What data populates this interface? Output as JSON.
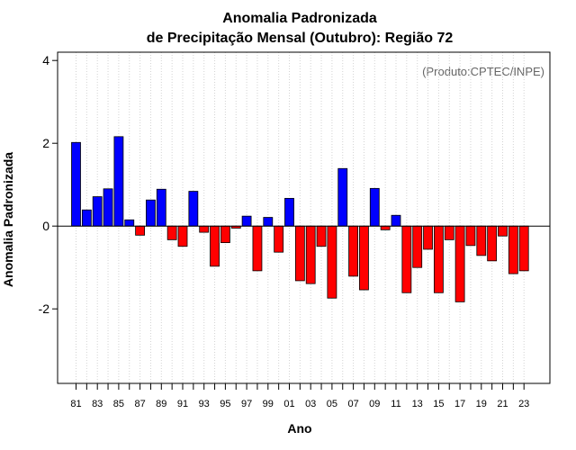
{
  "chart_data": {
    "type": "bar",
    "title": "Anomalia Padronizada",
    "subtitle": "de Precipitação Mensal (Outubro): Região 72",
    "xlabel": "Ano",
    "ylabel": "Anomalia Padronizada",
    "annotation": "(Produto:CPTEC/INPE)",
    "ylim": [
      -3.8,
      4.2
    ],
    "yticks": [
      -2,
      0,
      2,
      4
    ],
    "ytick_labels": [
      "-2",
      "0",
      "2",
      "4"
    ],
    "grid": "vertical dotted",
    "categories": [
      "81",
      "82",
      "83",
      "84",
      "85",
      "86",
      "87",
      "88",
      "89",
      "90",
      "91",
      "92",
      "93",
      "94",
      "95",
      "96",
      "97",
      "98",
      "99",
      "00",
      "01",
      "02",
      "03",
      "04",
      "05",
      "06",
      "07",
      "08",
      "09",
      "10",
      "11",
      "12",
      "13",
      "14",
      "15",
      "16",
      "17",
      "18",
      "19",
      "20",
      "21",
      "22",
      "23"
    ],
    "xtick_labels": [
      "81",
      "83",
      "85",
      "87",
      "89",
      "91",
      "93",
      "95",
      "97",
      "99",
      "01",
      "03",
      "05",
      "07",
      "09",
      "11",
      "13",
      "15",
      "17",
      "19",
      "21",
      "23"
    ],
    "values": [
      2.02,
      0.39,
      0.71,
      0.9,
      2.16,
      0.15,
      -0.22,
      0.63,
      0.89,
      -0.33,
      -0.49,
      0.84,
      -0.15,
      -0.97,
      -0.4,
      -0.05,
      0.24,
      -1.08,
      0.21,
      -0.63,
      0.67,
      -1.32,
      -1.39,
      -0.49,
      -1.74,
      1.39,
      -1.21,
      -1.54,
      0.91,
      -0.09,
      0.26,
      -1.61,
      -1.0,
      -0.56,
      -1.61,
      -0.33,
      -1.83,
      -0.47,
      -0.71,
      -0.84,
      -0.24,
      -1.15,
      -1.08
    ],
    "colors": {
      "positive": "#0000ff",
      "negative": "#ff0000",
      "outline": "#000000",
      "grid": "#d3d3d3",
      "annotation": "#666666"
    }
  }
}
